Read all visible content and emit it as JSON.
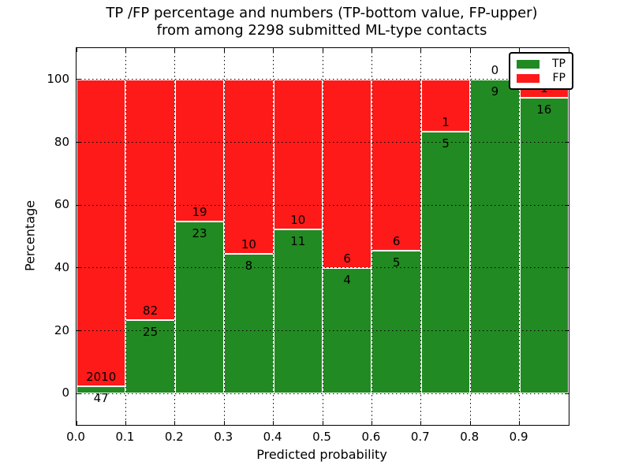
{
  "title": {
    "line1": "TP /FP percentage and numbers (TP-bottom value, FP-upper)",
    "line2": "from among 2298 submitted ML-type contacts"
  },
  "chart_data": {
    "type": "bar",
    "stacked": true,
    "normalized_to_percent": true,
    "total_contacts": 2298,
    "bin_edges": [
      0.0,
      0.1,
      0.2,
      0.3,
      0.4,
      0.5,
      0.6,
      0.7,
      0.8,
      0.9,
      1.0
    ],
    "categories": [
      "0.0-0.1",
      "0.1-0.2",
      "0.2-0.3",
      "0.3-0.4",
      "0.4-0.5",
      "0.5-0.6",
      "0.6-0.7",
      "0.7-0.8",
      "0.8-0.9",
      "0.9-1.0"
    ],
    "series": [
      {
        "name": "TP",
        "color": "#228a22",
        "values": [
          47,
          25,
          23,
          8,
          11,
          4,
          5,
          5,
          9,
          16
        ]
      },
      {
        "name": "FP",
        "color": "#ff1a1a",
        "values": [
          2010,
          82,
          19,
          10,
          10,
          6,
          6,
          1,
          0,
          1
        ]
      }
    ],
    "tp_percent": [
      2.3,
      23.4,
      54.8,
      44.4,
      52.4,
      40.0,
      45.5,
      83.3,
      100.0,
      94.1
    ],
    "title": "TP /FP percentage and numbers (TP-bottom value, FP-upper) from among 2298 submitted ML-type contacts",
    "xlabel": "Predicted probability",
    "ylabel": "Percentage",
    "xlim": [
      0.0,
      1.0
    ],
    "ylim": [
      -10,
      110
    ],
    "xticks": [
      "0.0",
      "0.1",
      "0.2",
      "0.3",
      "0.4",
      "0.5",
      "0.6",
      "0.7",
      "0.8",
      "0.9"
    ],
    "yticks": [
      "0",
      "20",
      "40",
      "60",
      "80",
      "100"
    ],
    "grid": true,
    "grid_style": "dotted",
    "legend": {
      "position": "upper right",
      "entries": [
        {
          "label": "TP",
          "color": "#228a22"
        },
        {
          "label": "FP",
          "color": "#ff1a1a"
        }
      ]
    }
  }
}
